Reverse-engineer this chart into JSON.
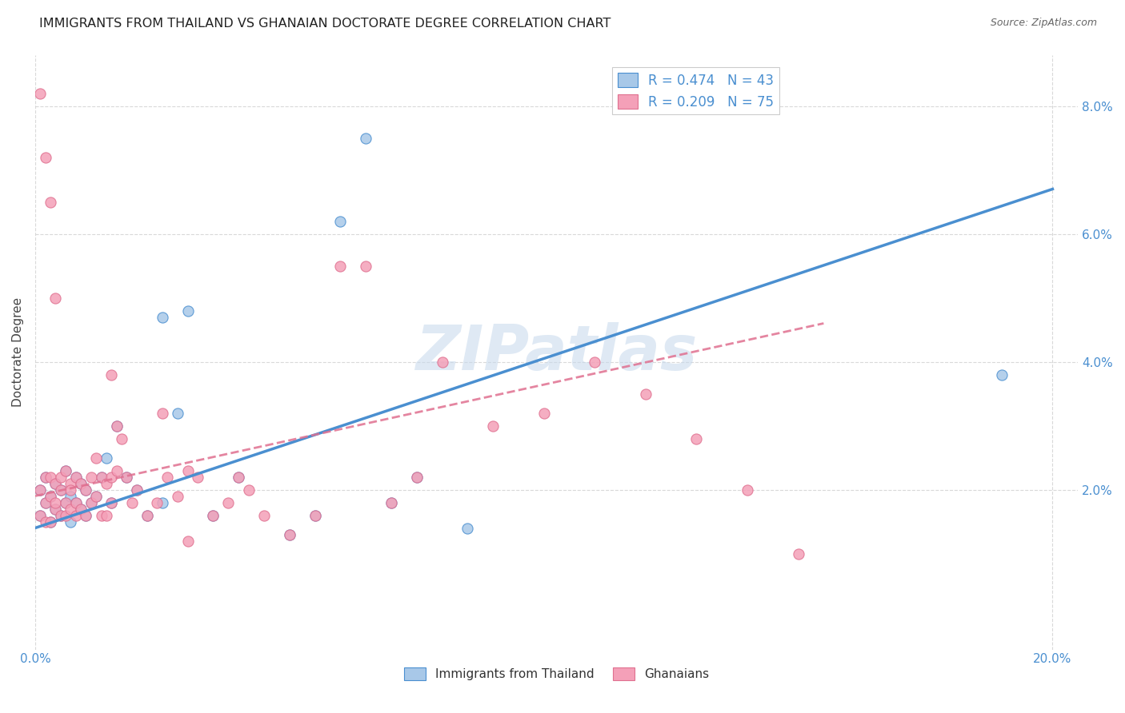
{
  "title": "IMMIGRANTS FROM THAILAND VS GHANAIAN DOCTORATE DEGREE CORRELATION CHART",
  "source": "Source: ZipAtlas.com",
  "watermark": "ZIPatlas",
  "legend_r1": "R = 0.474",
  "legend_n1": "N = 43",
  "legend_r2": "R = 0.209",
  "legend_n2": "N = 75",
  "color_thailand": "#a8c8e8",
  "color_ghana": "#f4a0b8",
  "color_line_thailand": "#4a8fd0",
  "color_line_ghana": "#e07090",
  "xlim": [
    0.0,
    0.205
  ],
  "ylim": [
    -0.005,
    0.088
  ],
  "xticks": [
    0.0,
    0.2
  ],
  "yticks": [
    0.02,
    0.04,
    0.06,
    0.08
  ],
  "thai_line_x": [
    0.0,
    0.2
  ],
  "thai_line_y": [
    0.014,
    0.067
  ],
  "ghana_line_x": [
    0.0,
    0.155
  ],
  "ghana_line_y": [
    0.019,
    0.046
  ],
  "thailand_x": [
    0.001,
    0.001,
    0.002,
    0.002,
    0.003,
    0.003,
    0.004,
    0.004,
    0.005,
    0.005,
    0.006,
    0.006,
    0.007,
    0.007,
    0.008,
    0.008,
    0.009,
    0.009,
    0.01,
    0.01,
    0.011,
    0.012,
    0.013,
    0.014,
    0.015,
    0.016,
    0.018,
    0.02,
    0.022,
    0.025,
    0.028,
    0.03,
    0.035,
    0.04,
    0.05,
    0.055,
    0.06,
    0.065,
    0.07,
    0.075,
    0.085,
    0.19,
    0.025
  ],
  "thailand_y": [
    0.02,
    0.016,
    0.022,
    0.018,
    0.019,
    0.015,
    0.021,
    0.017,
    0.02,
    0.016,
    0.018,
    0.023,
    0.019,
    0.015,
    0.022,
    0.018,
    0.021,
    0.017,
    0.02,
    0.016,
    0.018,
    0.019,
    0.022,
    0.025,
    0.018,
    0.03,
    0.022,
    0.02,
    0.016,
    0.018,
    0.032,
    0.048,
    0.016,
    0.022,
    0.013,
    0.016,
    0.062,
    0.075,
    0.018,
    0.022,
    0.014,
    0.038,
    0.047
  ],
  "ghana_x": [
    0.001,
    0.001,
    0.001,
    0.002,
    0.002,
    0.002,
    0.003,
    0.003,
    0.003,
    0.004,
    0.004,
    0.004,
    0.005,
    0.005,
    0.005,
    0.006,
    0.006,
    0.006,
    0.007,
    0.007,
    0.007,
    0.008,
    0.008,
    0.008,
    0.009,
    0.009,
    0.01,
    0.01,
    0.011,
    0.011,
    0.012,
    0.012,
    0.013,
    0.013,
    0.014,
    0.014,
    0.015,
    0.015,
    0.016,
    0.016,
    0.017,
    0.018,
    0.019,
    0.02,
    0.022,
    0.024,
    0.025,
    0.026,
    0.028,
    0.03,
    0.032,
    0.035,
    0.038,
    0.04,
    0.042,
    0.045,
    0.05,
    0.055,
    0.06,
    0.065,
    0.07,
    0.075,
    0.08,
    0.09,
    0.1,
    0.11,
    0.12,
    0.13,
    0.14,
    0.15,
    0.002,
    0.003,
    0.004,
    0.015,
    0.03
  ],
  "ghana_y": [
    0.02,
    0.016,
    0.082,
    0.022,
    0.018,
    0.015,
    0.019,
    0.015,
    0.022,
    0.021,
    0.017,
    0.018,
    0.02,
    0.016,
    0.022,
    0.018,
    0.023,
    0.016,
    0.021,
    0.017,
    0.02,
    0.016,
    0.018,
    0.022,
    0.021,
    0.017,
    0.02,
    0.016,
    0.022,
    0.018,
    0.025,
    0.019,
    0.022,
    0.016,
    0.021,
    0.016,
    0.022,
    0.018,
    0.03,
    0.023,
    0.028,
    0.022,
    0.018,
    0.02,
    0.016,
    0.018,
    0.032,
    0.022,
    0.019,
    0.023,
    0.022,
    0.016,
    0.018,
    0.022,
    0.02,
    0.016,
    0.013,
    0.016,
    0.055,
    0.055,
    0.018,
    0.022,
    0.04,
    0.03,
    0.032,
    0.04,
    0.035,
    0.028,
    0.02,
    0.01,
    0.072,
    0.065,
    0.05,
    0.038,
    0.012
  ]
}
